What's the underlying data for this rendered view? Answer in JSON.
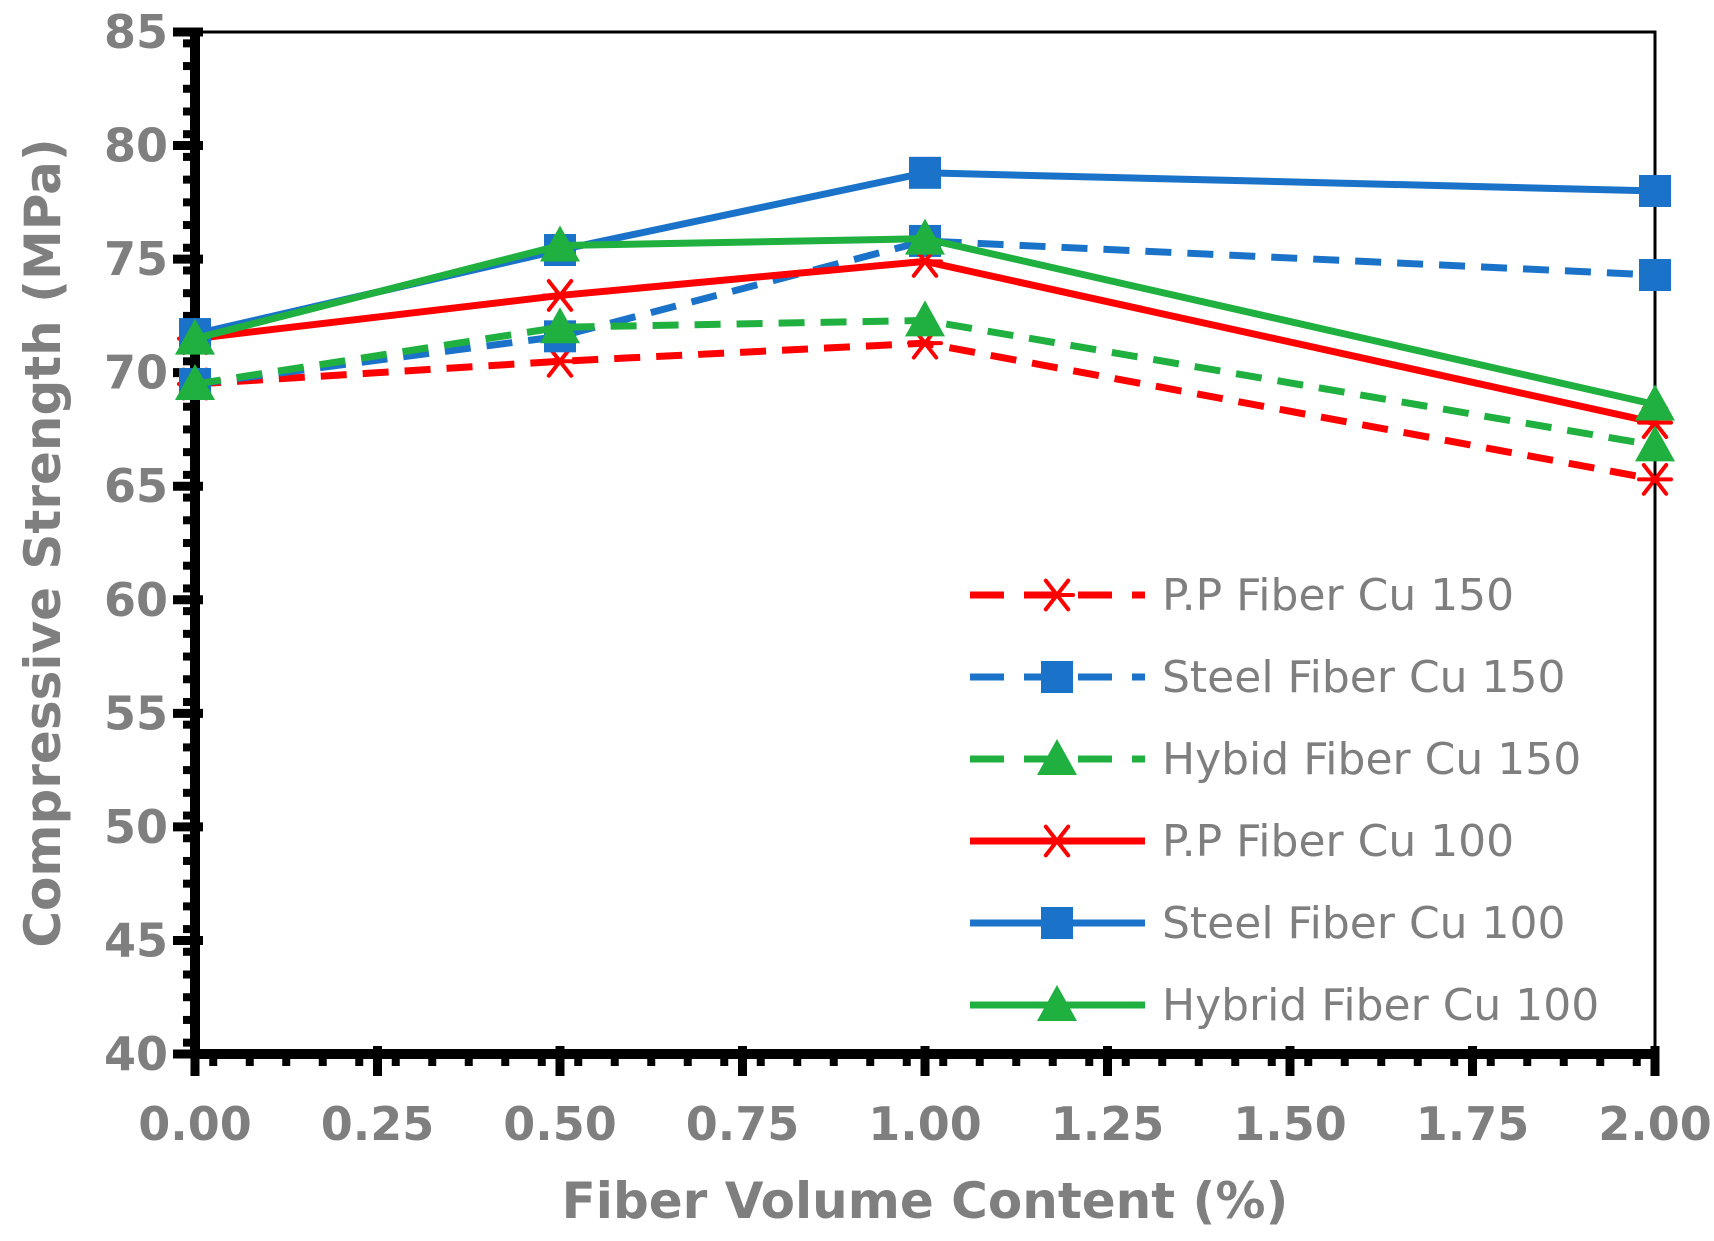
{
  "chart_data": {
    "type": "line",
    "xlabel": "Fiber Volume Content (%)",
    "ylabel": "Compressive Strength (MPa)",
    "xlim": [
      0,
      2
    ],
    "ylim": [
      40,
      85
    ],
    "x_ticks": [
      "0.00",
      "0.25",
      "0.50",
      "0.75",
      "1.00",
      "1.25",
      "1.50",
      "1.75",
      "2.00"
    ],
    "y_ticks": [
      "40",
      "45",
      "50",
      "55",
      "60",
      "65",
      "70",
      "75",
      "80",
      "85"
    ],
    "legend_position": "bottom-right",
    "series": [
      {
        "name": "P.P Fiber Cu 150",
        "color": "#ff0000",
        "dash": "dashed",
        "marker": "asterisk",
        "x": [
          0,
          0.5,
          1,
          2
        ],
        "y": [
          69.5,
          70.5,
          71.3,
          65.3
        ]
      },
      {
        "name": "Steel Fiber Cu 150",
        "color": "#1a73c8",
        "dash": "dashed",
        "marker": "square",
        "x": [
          0,
          0.5,
          1,
          2
        ],
        "y": [
          69.5,
          71.6,
          75.8,
          74.3
        ]
      },
      {
        "name": "Hybid Fiber Cu 150",
        "color": "#1fb040",
        "dash": "dashed",
        "marker": "triangle",
        "x": [
          0,
          0.5,
          1,
          2
        ],
        "y": [
          69.5,
          72.0,
          72.3,
          66.8
        ]
      },
      {
        "name": "P.P Fiber Cu 100",
        "color": "#ff0000",
        "dash": "solid",
        "marker": "asterisk",
        "x": [
          0,
          0.5,
          1,
          2
        ],
        "y": [
          71.5,
          73.4,
          74.9,
          67.8
        ]
      },
      {
        "name": "Steel Fiber Cu 100",
        "color": "#1a73c8",
        "dash": "solid",
        "marker": "square",
        "x": [
          0,
          0.5,
          1,
          2
        ],
        "y": [
          71.7,
          75.4,
          78.8,
          78.0
        ]
      },
      {
        "name": "Hybrid Fiber Cu 100",
        "color": "#1fb040",
        "dash": "solid",
        "marker": "triangle",
        "x": [
          0,
          0.5,
          1,
          2
        ],
        "y": [
          71.5,
          75.6,
          75.9,
          68.6
        ]
      }
    ]
  }
}
